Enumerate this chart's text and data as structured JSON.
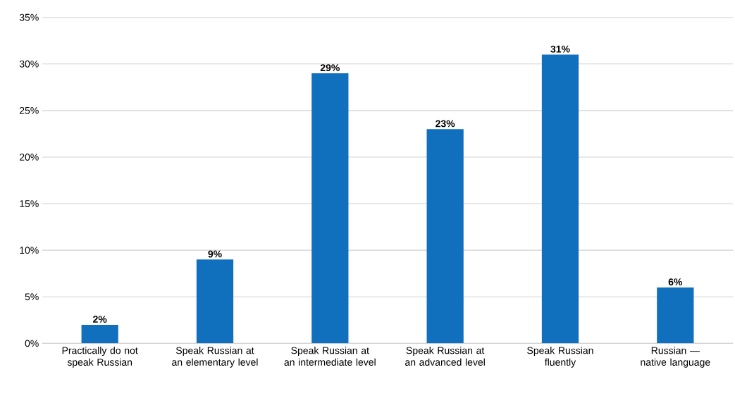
{
  "chart_data": {
    "type": "bar",
    "categories": [
      "Practically do not speak Russian",
      "Speak Russian at an elementary level",
      "Speak Russian at an intermediate level",
      "Speak Russian at an advanced level",
      "Speak Russian fluently",
      "Russian — native language"
    ],
    "values": [
      2,
      9,
      29,
      23,
      31,
      6
    ],
    "value_labels": [
      "2%",
      "9%",
      "29%",
      "23%",
      "31%",
      "6%"
    ],
    "color": "#1170be",
    "ylim": [
      0,
      35
    ],
    "yticks": [
      {
        "value": 0,
        "label": "0%"
      },
      {
        "value": 5,
        "label": "5%"
      },
      {
        "value": 10,
        "label": "10%"
      },
      {
        "value": 15,
        "label": "15%"
      },
      {
        "value": 20,
        "label": "20%"
      },
      {
        "value": 25,
        "label": "25%"
      },
      {
        "value": 30,
        "label": "30%"
      },
      {
        "value": 35,
        "label": "35%"
      }
    ],
    "grid": "y"
  }
}
